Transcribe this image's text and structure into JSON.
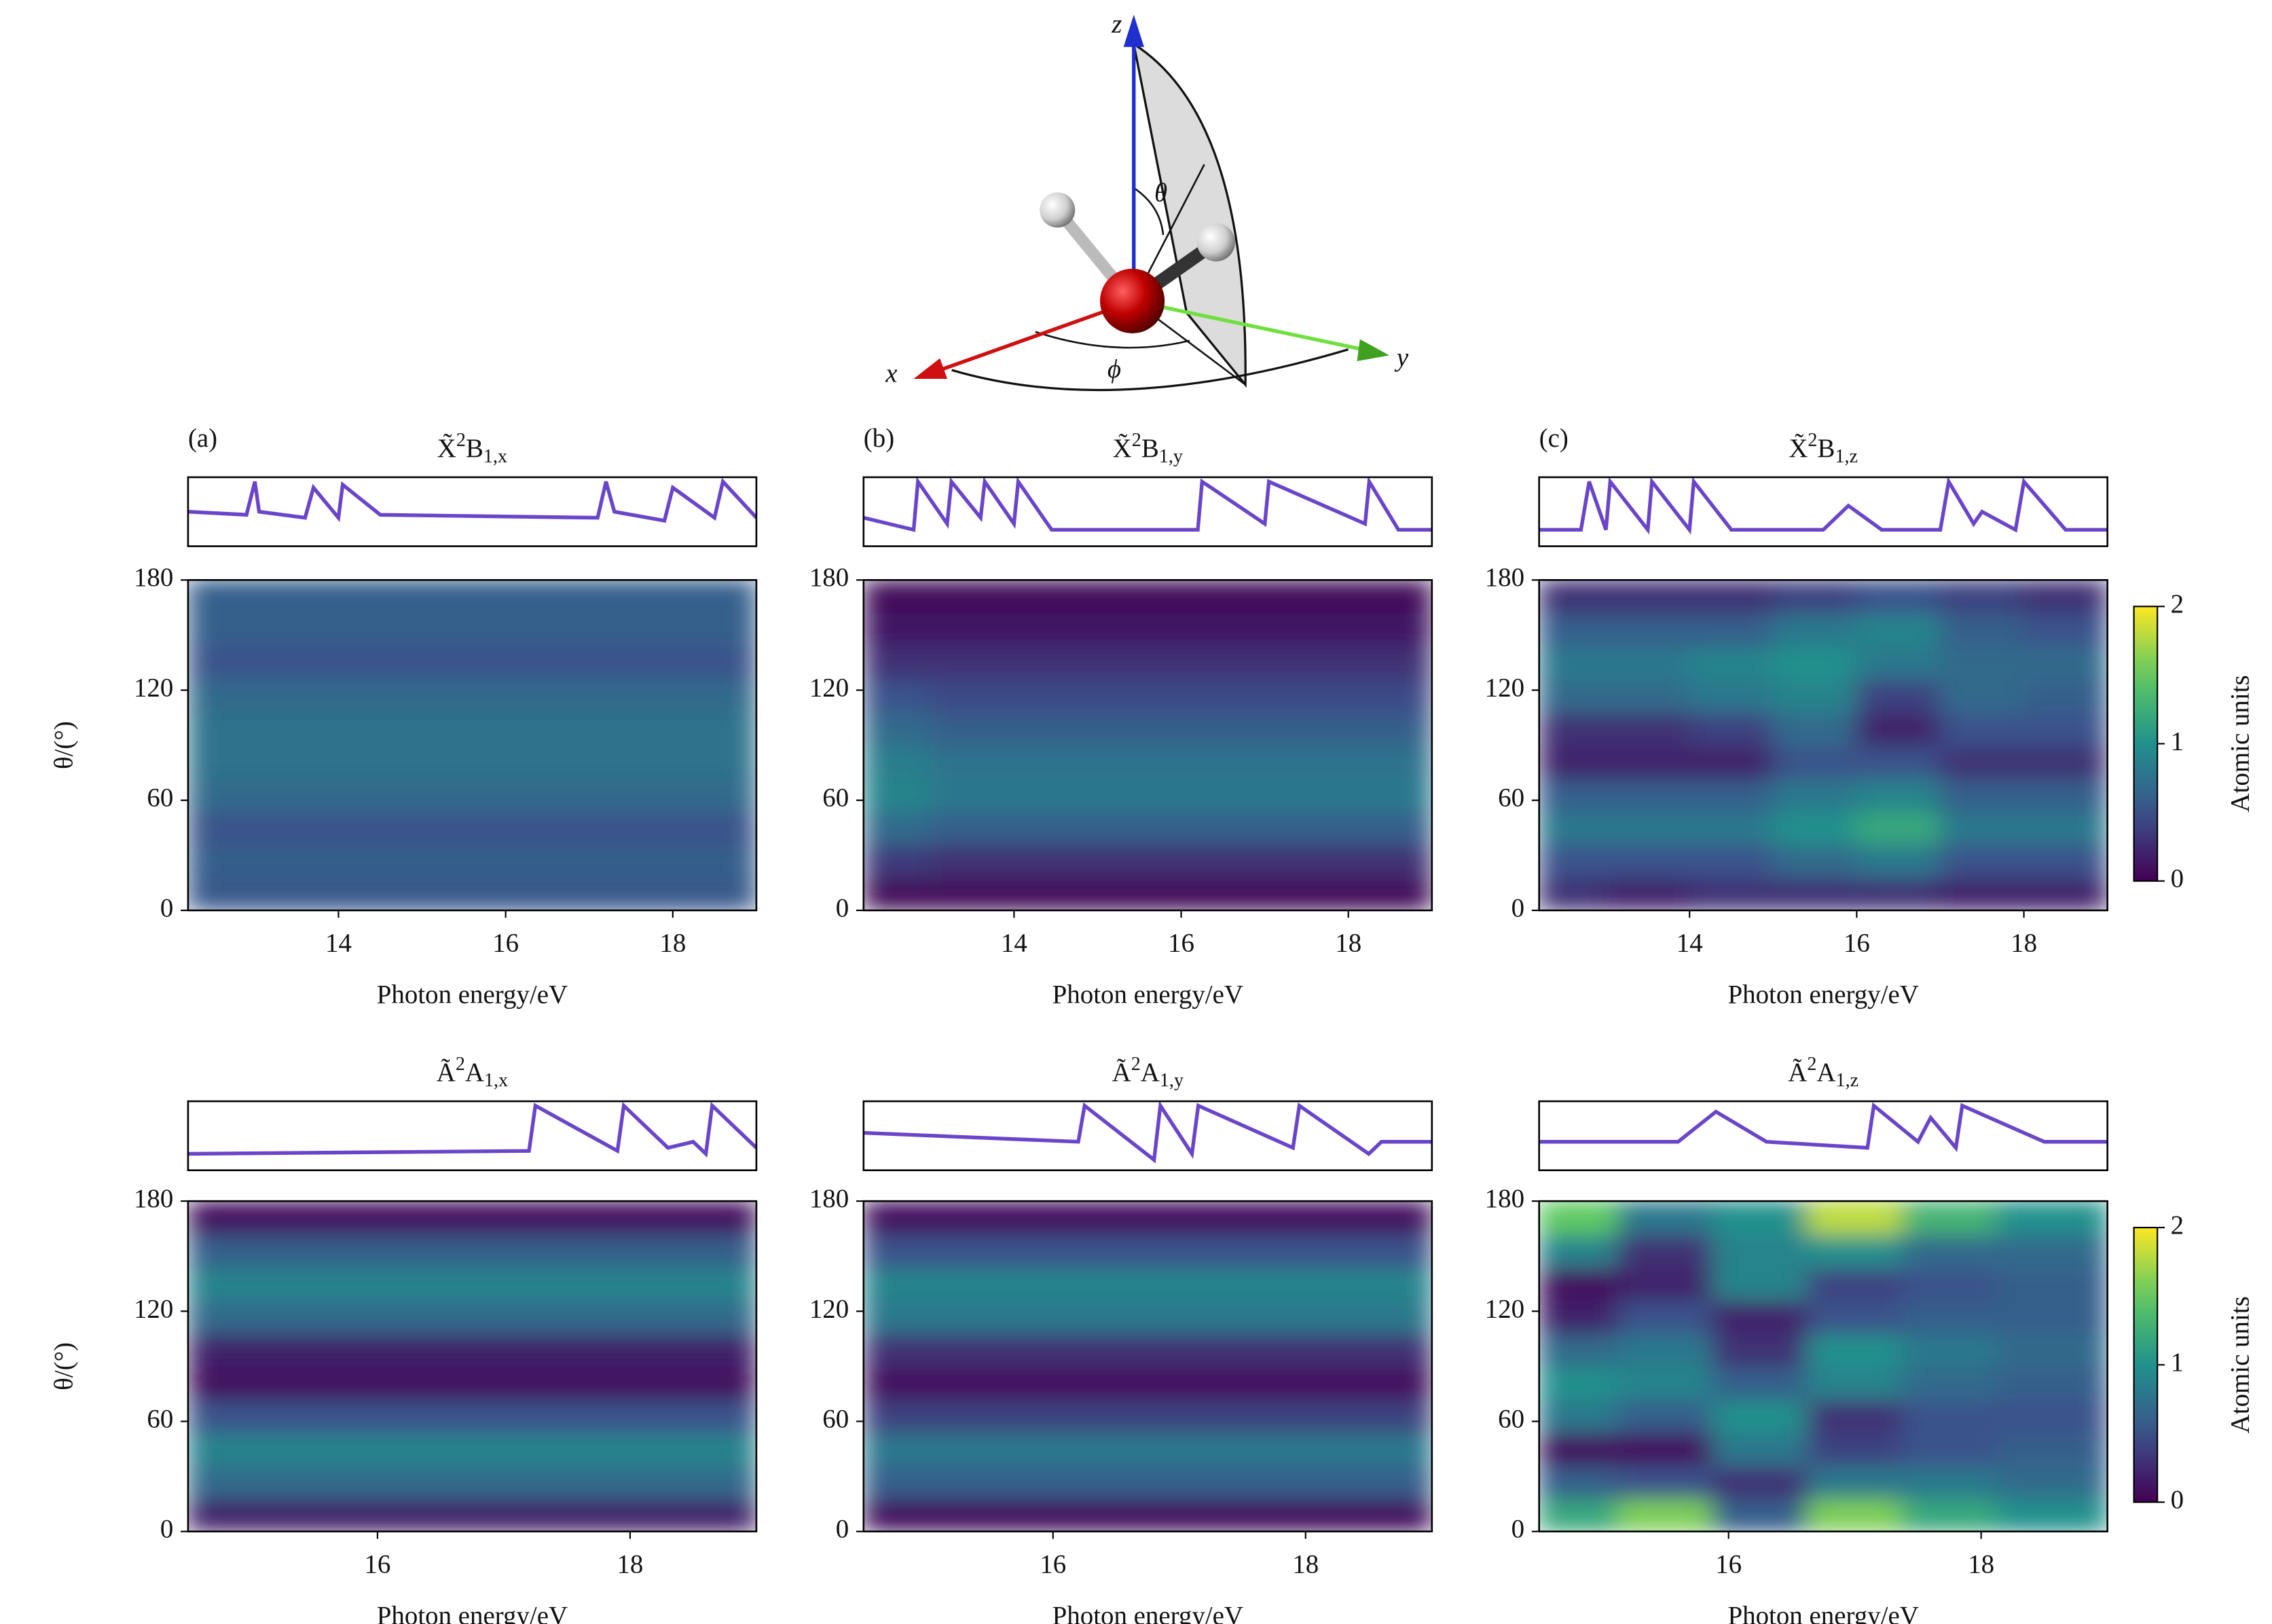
{
  "diagram": {
    "axis_labels": {
      "x": "x",
      "y": "y",
      "z": "z"
    },
    "angles": {
      "theta": "θ",
      "phi": "ϕ"
    }
  },
  "chart_data": [
    {
      "type": "heatmap",
      "panel_label": "(a)",
      "title": {
        "state": "X̃",
        "sup": "2",
        "sym": "B",
        "sub": "1,x"
      },
      "line": {
        "x": [
          12.2,
          12.9,
          13.0,
          13.05,
          13.6,
          13.7,
          14.0,
          14.05,
          14.5,
          17.1,
          17.2,
          17.3,
          17.9,
          18.0,
          18.5,
          18.6,
          19
        ],
        "values": [
          0.5,
          0.45,
          1,
          0.5,
          0.4,
          0.9,
          0.4,
          0.95,
          0.45,
          0.4,
          1,
          0.5,
          0.35,
          0.9,
          0.4,
          1,
          0.4
        ],
        "color": "#6a45c9",
        "ylim": [
          0,
          1
        ]
      },
      "x": [
        12.5,
        13.5,
        14.5,
        15.5,
        16.5,
        17.5,
        18.5
      ],
      "y": [
        9,
        27,
        45,
        63,
        81,
        99,
        117,
        135,
        153,
        171
      ],
      "z": [
        [
          0.55,
          0.55,
          0.55,
          0.55,
          0.55,
          0.55,
          0.55
        ],
        [
          0.6,
          0.6,
          0.6,
          0.6,
          0.6,
          0.6,
          0.6
        ],
        [
          0.5,
          0.5,
          0.5,
          0.5,
          0.5,
          0.5,
          0.5
        ],
        [
          0.7,
          0.7,
          0.7,
          0.7,
          0.7,
          0.7,
          0.7
        ],
        [
          0.75,
          0.75,
          0.75,
          0.75,
          0.75,
          0.75,
          0.75
        ],
        [
          0.75,
          0.75,
          0.75,
          0.75,
          0.75,
          0.75,
          0.75
        ],
        [
          0.7,
          0.7,
          0.7,
          0.7,
          0.7,
          0.7,
          0.7
        ],
        [
          0.5,
          0.5,
          0.5,
          0.5,
          0.5,
          0.5,
          0.5
        ],
        [
          0.6,
          0.6,
          0.6,
          0.6,
          0.6,
          0.6,
          0.6
        ],
        [
          0.6,
          0.6,
          0.6,
          0.6,
          0.6,
          0.6,
          0.6
        ]
      ],
      "xlim": [
        12.2,
        19
      ],
      "xticks": [
        14,
        16,
        18
      ],
      "ylim": [
        0,
        180
      ],
      "yticks": [
        0,
        60,
        120,
        180
      ],
      "xlabel": "Photon energy/eV",
      "ylabel": "θ/(°)",
      "colormap": "viridis",
      "clim": [
        0,
        2
      ]
    },
    {
      "type": "heatmap",
      "panel_label": "(b)",
      "title": {
        "state": "X̃",
        "sup": "2",
        "sym": "B",
        "sub": "1,y"
      },
      "line": {
        "x": [
          12.2,
          12.8,
          12.85,
          13.2,
          13.25,
          13.6,
          13.65,
          14.0,
          14.05,
          14.4,
          14.45,
          16.2,
          16.25,
          17.0,
          17.05,
          18.2,
          18.25,
          18.6,
          19
        ],
        "values": [
          0.4,
          0.2,
          1,
          0.3,
          1,
          0.4,
          1,
          0.3,
          1,
          0.3,
          0.2,
          0.2,
          1,
          0.3,
          1,
          0.3,
          1,
          0.2,
          0.2
        ],
        "color": "#6a45c9",
        "ylim": [
          0,
          1
        ]
      },
      "x": [
        12.5,
        13.5,
        14.5,
        15.5,
        16.5,
        17.5,
        18.5
      ],
      "y": [
        9,
        27,
        45,
        63,
        81,
        99,
        117,
        135,
        153,
        171
      ],
      "z": [
        [
          0.05,
          0.05,
          0.05,
          0.05,
          0.05,
          0.05,
          0.05
        ],
        [
          0.35,
          0.3,
          0.3,
          0.3,
          0.3,
          0.3,
          0.3
        ],
        [
          0.7,
          0.6,
          0.6,
          0.6,
          0.6,
          0.6,
          0.6
        ],
        [
          0.9,
          0.8,
          0.8,
          0.8,
          0.8,
          0.8,
          0.8
        ],
        [
          0.85,
          0.75,
          0.75,
          0.75,
          0.75,
          0.75,
          0.75
        ],
        [
          0.7,
          0.6,
          0.6,
          0.6,
          0.6,
          0.6,
          0.6
        ],
        [
          0.5,
          0.45,
          0.45,
          0.45,
          0.45,
          0.45,
          0.45
        ],
        [
          0.3,
          0.3,
          0.3,
          0.3,
          0.3,
          0.3,
          0.3
        ],
        [
          0.15,
          0.15,
          0.15,
          0.15,
          0.15,
          0.15,
          0.15
        ],
        [
          0.05,
          0.05,
          0.05,
          0.05,
          0.05,
          0.05,
          0.05
        ]
      ],
      "xlim": [
        12.2,
        19
      ],
      "xticks": [
        14,
        16,
        18
      ],
      "ylim": [
        0,
        180
      ],
      "yticks": [
        0,
        60,
        120,
        180
      ],
      "xlabel": "Photon energy/eV",
      "colormap": "viridis",
      "clim": [
        0,
        2
      ]
    },
    {
      "type": "heatmap",
      "panel_label": "(c)",
      "title": {
        "state": "X̃",
        "sup": "2",
        "sym": "B",
        "sub": "1,z"
      },
      "line": {
        "x": [
          12.2,
          12.7,
          12.8,
          13.0,
          13.05,
          13.5,
          13.55,
          14.0,
          14.05,
          14.5,
          15.6,
          15.9,
          16.3,
          17.0,
          17.1,
          17.4,
          17.5,
          17.9,
          18.0,
          18.5,
          19
        ],
        "values": [
          0.2,
          0.2,
          1,
          0.2,
          1,
          0.2,
          1,
          0.2,
          1,
          0.2,
          0.2,
          0.6,
          0.2,
          0.2,
          1,
          0.3,
          0.5,
          0.2,
          1,
          0.2,
          0.2
        ],
        "color": "#6a45c9",
        "ylim": [
          0,
          1
        ]
      },
      "x": [
        12.5,
        13.5,
        14.5,
        15.5,
        16.5,
        17.5,
        18.5
      ],
      "y": [
        9,
        27,
        45,
        63,
        81,
        99,
        117,
        135,
        153,
        171
      ],
      "z": [
        [
          0.3,
          0.2,
          0.3,
          0.3,
          0.3,
          0.2,
          0.2
        ],
        [
          0.5,
          0.5,
          0.5,
          0.7,
          0.8,
          0.5,
          0.5
        ],
        [
          0.8,
          0.8,
          0.8,
          1.0,
          1.2,
          0.8,
          0.8
        ],
        [
          0.6,
          0.6,
          0.6,
          0.8,
          0.9,
          0.6,
          0.6
        ],
        [
          0.2,
          0.2,
          0.2,
          0.5,
          0.5,
          0.3,
          0.3
        ],
        [
          0.3,
          0.3,
          0.4,
          0.7,
          0.2,
          0.5,
          0.5
        ],
        [
          0.7,
          0.7,
          0.8,
          0.9,
          0.4,
          0.7,
          0.6
        ],
        [
          0.8,
          0.8,
          0.9,
          1.0,
          0.8,
          0.7,
          0.7
        ],
        [
          0.6,
          0.6,
          0.6,
          0.8,
          0.9,
          0.6,
          0.5
        ],
        [
          0.3,
          0.3,
          0.3,
          0.4,
          0.5,
          0.4,
          0.3
        ]
      ],
      "xlim": [
        12.2,
        19
      ],
      "xticks": [
        14,
        16,
        18
      ],
      "ylim": [
        0,
        180
      ],
      "yticks": [
        0,
        60,
        120,
        180
      ],
      "xlabel": "Photon energy/eV",
      "colormap": "viridis",
      "clim": [
        0,
        2
      ],
      "colorbar": {
        "label": "Atomic units",
        "ticks": [
          0,
          1,
          2
        ]
      }
    },
    {
      "type": "heatmap",
      "title": {
        "state": "Ã",
        "sup": "2",
        "sym": "A",
        "sub": "1,x"
      },
      "line": {
        "x": [
          14.5,
          17.2,
          17.25,
          17.9,
          17.95,
          18.3,
          18.5,
          18.6,
          18.65,
          19
        ],
        "values": [
          0.2,
          0.25,
          1,
          0.25,
          1,
          0.3,
          0.4,
          0.2,
          1,
          0.3
        ],
        "color": "#6a45c9",
        "ylim": [
          0,
          1
        ]
      },
      "x": [
        14.75,
        15.5,
        16.25,
        17,
        17.75,
        18.5
      ],
      "y": [
        9,
        27,
        45,
        63,
        81,
        99,
        117,
        135,
        153,
        171
      ],
      "z": [
        [
          0.2,
          0.2,
          0.2,
          0.2,
          0.2,
          0.2
        ],
        [
          0.7,
          0.7,
          0.7,
          0.7,
          0.7,
          0.7
        ],
        [
          0.9,
          0.9,
          0.9,
          0.9,
          0.9,
          0.9
        ],
        [
          0.5,
          0.5,
          0.5,
          0.5,
          0.5,
          0.5
        ],
        [
          0.1,
          0.1,
          0.1,
          0.1,
          0.1,
          0.1
        ],
        [
          0.2,
          0.2,
          0.2,
          0.2,
          0.2,
          0.2
        ],
        [
          0.7,
          0.7,
          0.7,
          0.7,
          0.7,
          0.7
        ],
        [
          0.9,
          0.9,
          0.9,
          0.9,
          0.9,
          0.9
        ],
        [
          0.6,
          0.6,
          0.6,
          0.6,
          0.6,
          0.6
        ],
        [
          0.1,
          0.1,
          0.1,
          0.1,
          0.1,
          0.1
        ]
      ],
      "xlim": [
        14.5,
        19
      ],
      "xticks": [
        16,
        18
      ],
      "ylim": [
        0,
        180
      ],
      "yticks": [
        0,
        60,
        120,
        180
      ],
      "xlabel": "Photon energy/eV",
      "ylabel": "θ/(°)",
      "colormap": "viridis",
      "clim": [
        0,
        2
      ]
    },
    {
      "type": "heatmap",
      "title": {
        "state": "Ã",
        "sup": "2",
        "sym": "A",
        "sub": "1,y"
      },
      "line": {
        "x": [
          14.5,
          16.2,
          16.25,
          16.8,
          16.85,
          17.1,
          17.15,
          17.9,
          17.95,
          18.5,
          18.6,
          19
        ],
        "values": [
          0.55,
          0.4,
          1,
          0.1,
          1,
          0.2,
          1,
          0.3,
          1,
          0.2,
          0.4,
          0.4
        ],
        "color": "#6a45c9",
        "ylim": [
          0,
          1
        ]
      },
      "x": [
        14.75,
        15.5,
        16.25,
        17,
        17.75,
        18.5
      ],
      "y": [
        9,
        27,
        45,
        63,
        81,
        99,
        117,
        135,
        153,
        171
      ],
      "z": [
        [
          0.1,
          0.1,
          0.1,
          0.1,
          0.1,
          0.1
        ],
        [
          0.6,
          0.6,
          0.6,
          0.6,
          0.6,
          0.6
        ],
        [
          0.8,
          0.8,
          0.8,
          0.8,
          0.8,
          0.8
        ],
        [
          0.4,
          0.4,
          0.4,
          0.4,
          0.4,
          0.4
        ],
        [
          0.1,
          0.1,
          0.1,
          0.1,
          0.1,
          0.1
        ],
        [
          0.3,
          0.3,
          0.3,
          0.3,
          0.3,
          0.3
        ],
        [
          0.8,
          0.8,
          0.8,
          0.8,
          0.8,
          0.8
        ],
        [
          0.9,
          0.9,
          0.9,
          0.9,
          0.9,
          0.9
        ],
        [
          0.5,
          0.5,
          0.5,
          0.5,
          0.5,
          0.5
        ],
        [
          0.1,
          0.1,
          0.1,
          0.1,
          0.1,
          0.1
        ]
      ],
      "xlim": [
        14.5,
        19
      ],
      "xticks": [
        16,
        18
      ],
      "ylim": [
        0,
        180
      ],
      "yticks": [
        0,
        60,
        120,
        180
      ],
      "xlabel": "Photon energy/eV",
      "colormap": "viridis",
      "clim": [
        0,
        2
      ]
    },
    {
      "type": "heatmap",
      "title": {
        "state": "Ã",
        "sup": "2",
        "sym": "A",
        "sub": "1,z"
      },
      "line": {
        "x": [
          14.5,
          15.6,
          15.9,
          16.3,
          17.1,
          17.15,
          17.5,
          17.6,
          17.8,
          17.85,
          18.5,
          19
        ],
        "values": [
          0.4,
          0.4,
          0.9,
          0.4,
          0.3,
          1,
          0.4,
          0.8,
          0.3,
          1,
          0.4,
          0.4
        ],
        "color": "#6a45c9",
        "ylim": [
          0,
          1
        ]
      },
      "x": [
        14.75,
        15.5,
        16.25,
        17,
        17.75,
        18.5
      ],
      "y": [
        9,
        27,
        45,
        63,
        81,
        99,
        117,
        135,
        153,
        171
      ],
      "z": [
        [
          1.2,
          1.6,
          0.6,
          1.6,
          1.2,
          1.0
        ],
        [
          0.6,
          0.5,
          0.3,
          0.8,
          0.8,
          0.7
        ],
        [
          0.1,
          0.1,
          0.8,
          0.4,
          0.5,
          0.6
        ],
        [
          0.8,
          0.6,
          1.0,
          0.3,
          0.5,
          0.5
        ],
        [
          1.0,
          0.9,
          0.6,
          0.9,
          0.7,
          0.6
        ],
        [
          0.7,
          0.8,
          0.3,
          1.0,
          0.8,
          0.7
        ],
        [
          0.2,
          0.5,
          0.2,
          0.5,
          0.6,
          0.6
        ],
        [
          0.1,
          0.2,
          0.9,
          0.4,
          0.5,
          0.6
        ],
        [
          0.9,
          0.3,
          0.9,
          1.0,
          0.7,
          0.7
        ],
        [
          1.5,
          0.8,
          1.0,
          1.8,
          1.3,
          1.0
        ]
      ],
      "xlim": [
        14.5,
        19
      ],
      "xticks": [
        16,
        18
      ],
      "ylim": [
        0,
        180
      ],
      "yticks": [
        0,
        60,
        120,
        180
      ],
      "xlabel": "Photon energy/eV",
      "colormap": "viridis",
      "clim": [
        0,
        2
      ],
      "colorbar": {
        "label": "Atomic units",
        "ticks": [
          0,
          1,
          2
        ]
      }
    }
  ]
}
